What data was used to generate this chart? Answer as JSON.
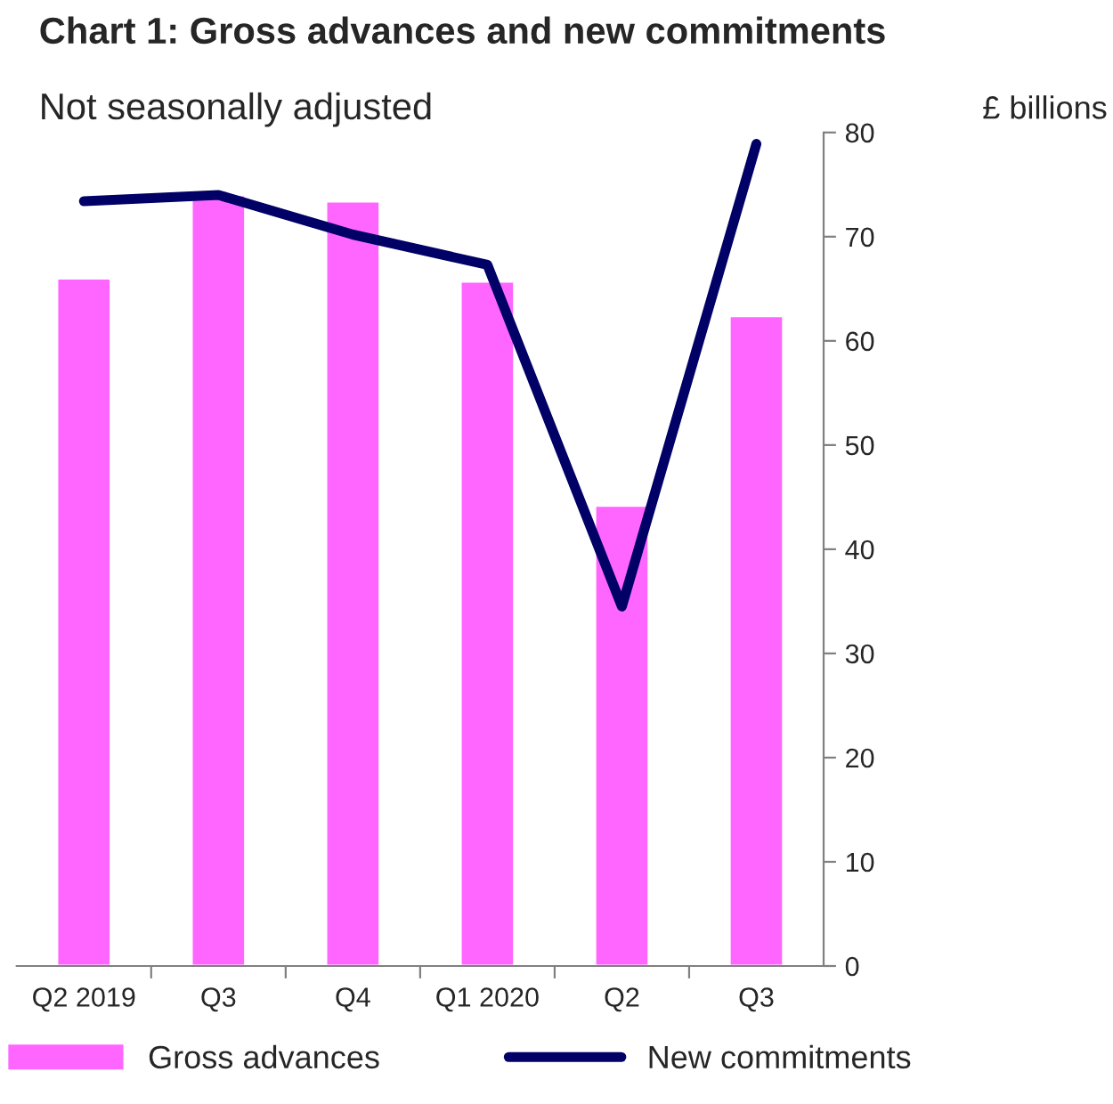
{
  "chart_data": {
    "type": "bar",
    "title": "Chart 1: Gross advances and new commitments",
    "subtitle": "Not seasonally adjusted",
    "ylabel": "£ billions",
    "categories": [
      "Q2 2019",
      "Q3",
      "Q4",
      "Q1 2020",
      "Q2",
      "Q3"
    ],
    "series": [
      {
        "name": "Gross advances",
        "color": "#ff66ff",
        "values": [
          66,
          74,
          73.4,
          65.7,
          44.2,
          62.4
        ]
      },
      {
        "name": "New commitments",
        "type": "line",
        "color": "#000066",
        "values": [
          73.4,
          74.0,
          70.2,
          67.3,
          34.5,
          78.9
        ]
      }
    ],
    "ylim": [
      0,
      80
    ],
    "yticks": [
      0,
      10,
      20,
      30,
      40,
      50,
      60,
      70,
      80
    ],
    "grid": false,
    "legend": "bottom"
  }
}
